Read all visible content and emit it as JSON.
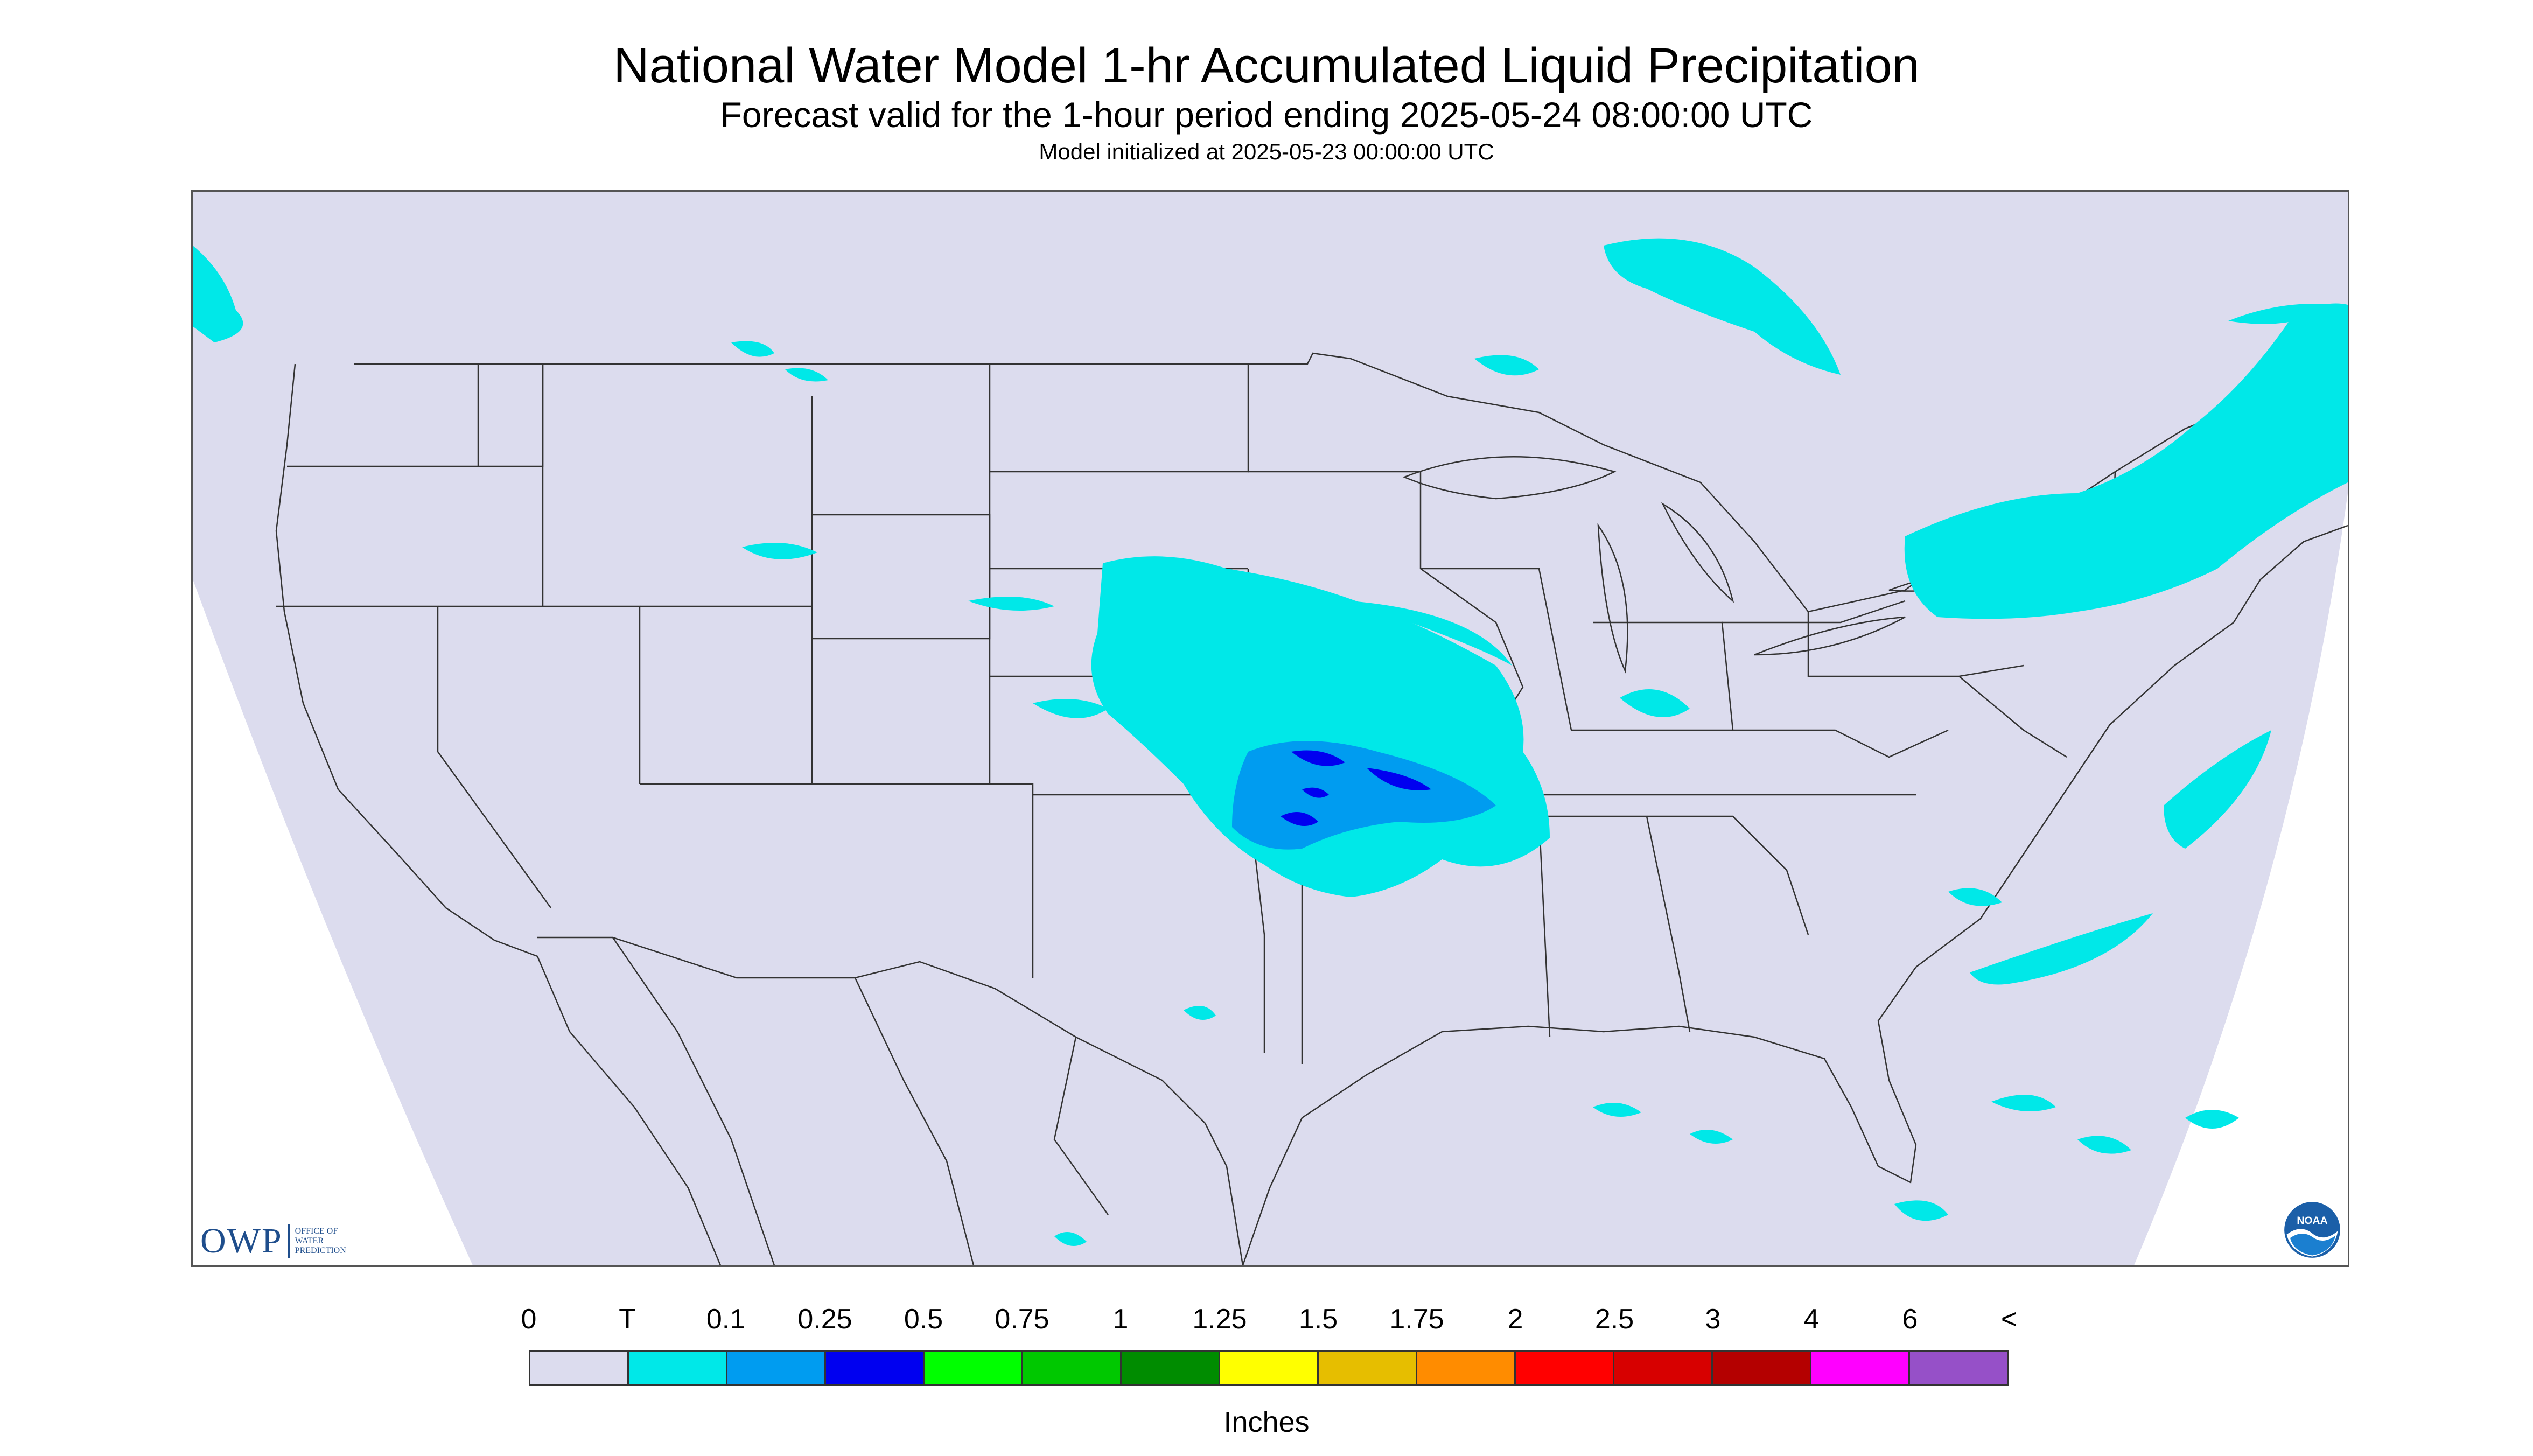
{
  "header": {
    "title": "National Water Model 1-hr Accumulated Liquid Precipitation",
    "subtitle": "Forecast valid for the 1-hour period ending 2025-05-24 08:00:00 UTC",
    "initialized": "Model initialized at 2025-05-23 00:00:00 UTC"
  },
  "map": {
    "region": "CONUS",
    "background_color": "#dcdcee",
    "outside_color": "#ffffff",
    "border_color": "#333333"
  },
  "logos": {
    "owp": {
      "mark": "OWP",
      "lines": [
        "OFFICE OF",
        "WATER",
        "PREDICTION"
      ]
    },
    "noaa": {
      "text": "NOAA"
    }
  },
  "legend": {
    "labels": [
      "0",
      "T",
      "0.1",
      "0.25",
      "0.5",
      "0.75",
      "1",
      "1.25",
      "1.5",
      "1.75",
      "2",
      "2.5",
      "3",
      "4",
      "6",
      "<"
    ],
    "colors": [
      "#dcdcee",
      "#00e8e8",
      "#009cf0",
      "#0000f0",
      "#00ff00",
      "#00c800",
      "#008c00",
      "#ffff00",
      "#e6be00",
      "#ff8c00",
      "#ff0000",
      "#d70000",
      "#b40000",
      "#ff00ff",
      "#9650c8"
    ],
    "units": "Inches"
  }
}
